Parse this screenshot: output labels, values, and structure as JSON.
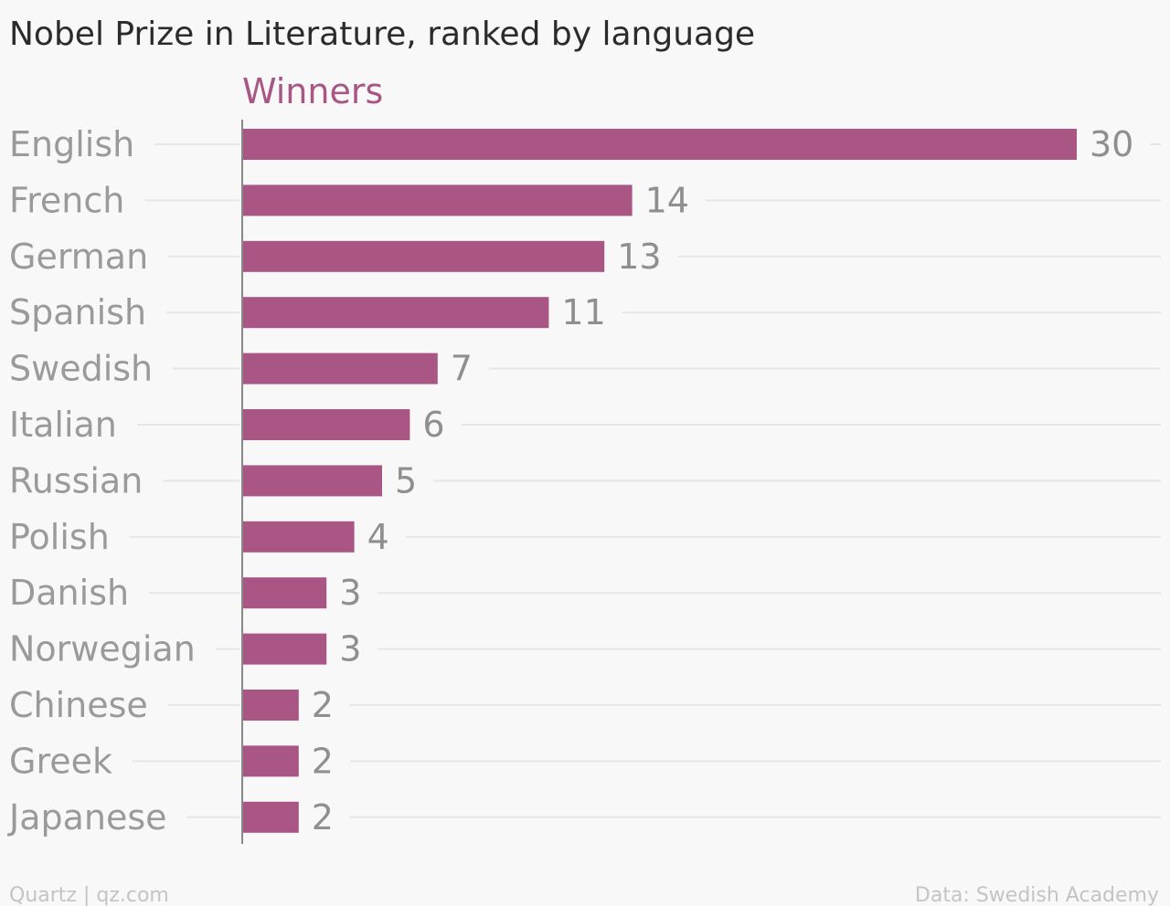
{
  "title": "Nobel Prize in Literature, ranked by language",
  "source": "Quartz | qz.com",
  "credit": "Data: Swedish Academy",
  "colors": {
    "bar": "#a95685",
    "series_label": "#a95685",
    "background": "#f8f8f8"
  },
  "chart_data": {
    "type": "bar",
    "orientation": "horizontal",
    "title": "Nobel Prize in Literature, ranked by language",
    "categories": [
      "English",
      "French",
      "German",
      "Spanish",
      "Swedish",
      "Italian",
      "Russian",
      "Polish",
      "Danish",
      "Norwegian",
      "Chinese",
      "Greek",
      "Japanese"
    ],
    "series": [
      {
        "name": "Winners",
        "values": [
          30,
          14,
          13,
          11,
          7,
          6,
          5,
          4,
          3,
          3,
          2,
          2,
          2
        ]
      }
    ],
    "xlim": [
      0,
      30
    ],
    "grid": true,
    "data_labels": true,
    "legend": "top-left"
  }
}
